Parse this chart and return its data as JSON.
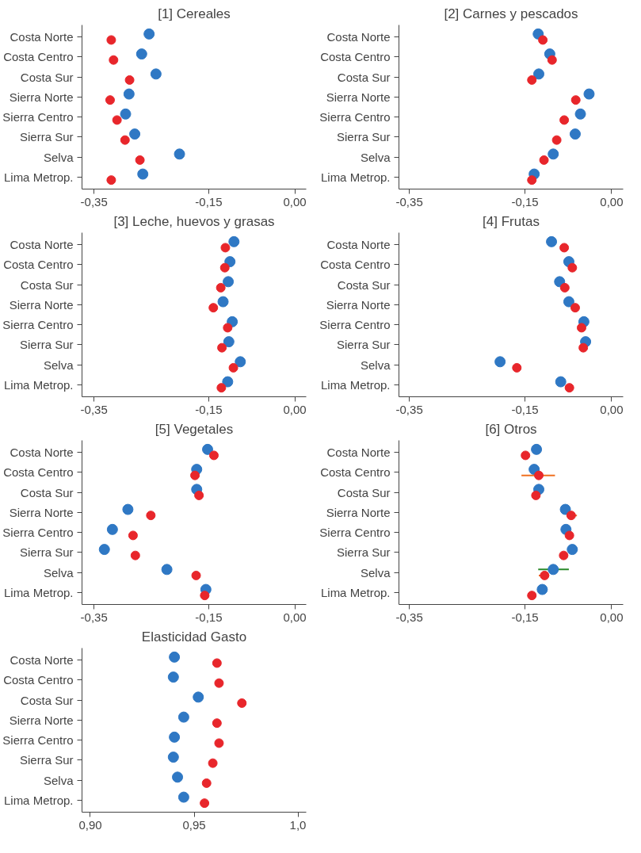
{
  "chart_data": [
    {
      "type": "scatter",
      "title": "[1] Cereales",
      "orientation": "horizontal",
      "marker": "circle",
      "grid": false,
      "categories": [
        "Costa Norte",
        "Costa Centro",
        "Costa Sur",
        "Sierra Norte",
        "Sierra Centro",
        "Sierra Sur",
        "Selva",
        "Lima Metrop."
      ],
      "xlim": [
        -0.371,
        0.02
      ],
      "xticks": [
        {
          "value": -0.35,
          "label": "-0,35"
        },
        {
          "value": -0.15,
          "label": "-0,15"
        },
        {
          "value": 0,
          "label": "0,00"
        }
      ],
      "series": [
        {
          "color": "#2f78c4",
          "values": [
            -0.254,
            -0.267,
            -0.242,
            -0.289,
            -0.295,
            -0.279,
            -0.201,
            -0.265
          ]
        },
        {
          "color": "#e8262b",
          "values": [
            -0.32,
            -0.316,
            -0.288,
            -0.322,
            -0.31,
            -0.296,
            -0.27,
            -0.32
          ]
        }
      ]
    },
    {
      "type": "scatter",
      "title": "[2] Carnes y pescados",
      "orientation": "horizontal",
      "marker": "circle",
      "grid": false,
      "categories": [
        "Costa Norte",
        "Costa Centro",
        "Costa Sur",
        "Sierra Norte",
        "Sierra Centro",
        "Sierra Sur",
        "Selva",
        "Lima Metrop."
      ],
      "xlim": [
        -0.368,
        0.02
      ],
      "xticks": [
        {
          "value": -0.35,
          "label": "-0,35"
        },
        {
          "value": -0.15,
          "label": "-0,15"
        },
        {
          "value": 0,
          "label": "0,00"
        }
      ],
      "series": [
        {
          "color": "#2f78c4",
          "values": [
            -0.127,
            -0.107,
            -0.126,
            -0.039,
            -0.054,
            -0.063,
            -0.101,
            -0.134
          ]
        },
        {
          "color": "#e8262b",
          "values": [
            -0.119,
            -0.103,
            -0.138,
            -0.062,
            -0.082,
            -0.095,
            -0.117,
            -0.138
          ]
        }
      ]
    },
    {
      "type": "scatter",
      "title": "[3] Leche, huevos y grasas",
      "orientation": "horizontal",
      "marker": "circle",
      "grid": false,
      "categories": [
        "Costa Norte",
        "Costa Centro",
        "Costa Sur",
        "Sierra Norte",
        "Sierra Centro",
        "Sierra Sur",
        "Selva",
        "Lima Metrop."
      ],
      "xlim": [
        -0.371,
        0.02
      ],
      "xticks": [
        {
          "value": -0.35,
          "label": "-0,35"
        },
        {
          "value": -0.15,
          "label": "-0,15"
        },
        {
          "value": 0,
          "label": "0,00"
        }
      ],
      "series": [
        {
          "color": "#2f78c4",
          "values": [
            -0.106,
            -0.113,
            -0.116,
            -0.125,
            -0.109,
            -0.115,
            -0.095,
            -0.117
          ]
        },
        {
          "color": "#e8262b",
          "values": [
            -0.121,
            -0.122,
            -0.129,
            -0.142,
            -0.117,
            -0.127,
            -0.107,
            -0.128
          ]
        }
      ]
    },
    {
      "type": "scatter",
      "title": "[4] Frutas",
      "orientation": "horizontal",
      "marker": "circle",
      "grid": false,
      "categories": [
        "Costa Norte",
        "Costa Centro",
        "Costa Sur",
        "Sierra Norte",
        "Sierra Centro",
        "Sierra Sur",
        "Selva",
        "Lima Metrop."
      ],
      "xlim": [
        -0.368,
        0.02
      ],
      "xticks": [
        {
          "value": -0.35,
          "label": "-0,35"
        },
        {
          "value": -0.15,
          "label": "-0,15"
        },
        {
          "value": 0,
          "label": "0,00"
        }
      ],
      "series": [
        {
          "color": "#2f78c4",
          "values": [
            -0.104,
            -0.074,
            -0.09,
            -0.074,
            -0.048,
            -0.045,
            -0.193,
            -0.088
          ]
        },
        {
          "color": "#e8262b",
          "values": [
            -0.082,
            -0.068,
            -0.081,
            -0.063,
            -0.052,
            -0.049,
            -0.164,
            -0.073
          ]
        }
      ]
    },
    {
      "type": "scatter",
      "title": "[5] Vegetales",
      "orientation": "horizontal",
      "marker": "circle",
      "grid": false,
      "categories": [
        "Costa Norte",
        "Costa Centro",
        "Costa Sur",
        "Sierra Norte",
        "Sierra Centro",
        "Sierra Sur",
        "Selva",
        "Lima Metrop."
      ],
      "xlim": [
        -0.371,
        0.02
      ],
      "xticks": [
        {
          "value": -0.35,
          "label": "-0,35"
        },
        {
          "value": -0.15,
          "label": "-0,15"
        },
        {
          "value": 0,
          "label": "0,00"
        }
      ],
      "series": [
        {
          "color": "#2f78c4",
          "values": [
            -0.152,
            -0.171,
            -0.171,
            -0.291,
            -0.318,
            -0.332,
            -0.223,
            -0.155
          ]
        },
        {
          "color": "#e8262b",
          "values": [
            -0.141,
            -0.174,
            -0.167,
            -0.251,
            -0.282,
            -0.278,
            -0.172,
            -0.157
          ]
        }
      ]
    },
    {
      "type": "scatter",
      "title": "[6] Otros",
      "orientation": "horizontal",
      "marker": "circle",
      "grid": false,
      "categories": [
        "Costa Norte",
        "Costa Centro",
        "Costa Sur",
        "Sierra Norte",
        "Sierra Centro",
        "Sierra Sur",
        "Selva",
        "Lima Metrop."
      ],
      "xlim": [
        -0.368,
        0.02
      ],
      "xticks": [
        {
          "value": -0.35,
          "label": "-0,35"
        },
        {
          "value": -0.15,
          "label": "-0,15"
        },
        {
          "value": 0,
          "label": "0,00"
        }
      ],
      "series": [
        {
          "color": "#2f78c4",
          "values": [
            -0.13,
            -0.134,
            -0.126,
            -0.08,
            -0.079,
            -0.068,
            -0.101,
            -0.12
          ],
          "errors": [
            null,
            null,
            null,
            null,
            null,
            null,
            [
              -0.127,
              -0.074
            ],
            null
          ]
        },
        {
          "color": "#e8262b",
          "values": [
            -0.149,
            -0.126,
            -0.131,
            -0.07,
            -0.073,
            -0.083,
            -0.116,
            -0.138
          ],
          "errors": [
            null,
            [
              -0.156,
              -0.098
            ],
            null,
            [
              -0.078,
              -0.06
            ],
            null,
            null,
            [
              -0.126,
              -0.108
            ],
            null
          ]
        }
      ]
    },
    {
      "type": "scatter",
      "title": "Elasticidad Gasto",
      "orientation": "horizontal",
      "marker": "circle",
      "grid": false,
      "categories": [
        "Costa Norte",
        "Costa Centro",
        "Costa Sur",
        "Sierra Norte",
        "Sierra Centro",
        "Sierra Sur",
        "Selva",
        "Lima Metrop."
      ],
      "xlim": [
        0.896,
        1.004
      ],
      "xticks": [
        {
          "value": 0.9,
          "label": "0,90"
        },
        {
          "value": 0.95,
          "label": "0,95"
        },
        {
          "value": 1.0,
          "label": "1,0"
        }
      ],
      "series": [
        {
          "color": "#2f78c4",
          "values": [
            0.9405,
            0.94,
            0.952,
            0.945,
            0.9405,
            0.94,
            0.942,
            0.945
          ]
        },
        {
          "color": "#e8262b",
          "values": [
            0.961,
            0.962,
            0.973,
            0.961,
            0.962,
            0.959,
            0.956,
            0.955
          ]
        }
      ]
    }
  ]
}
